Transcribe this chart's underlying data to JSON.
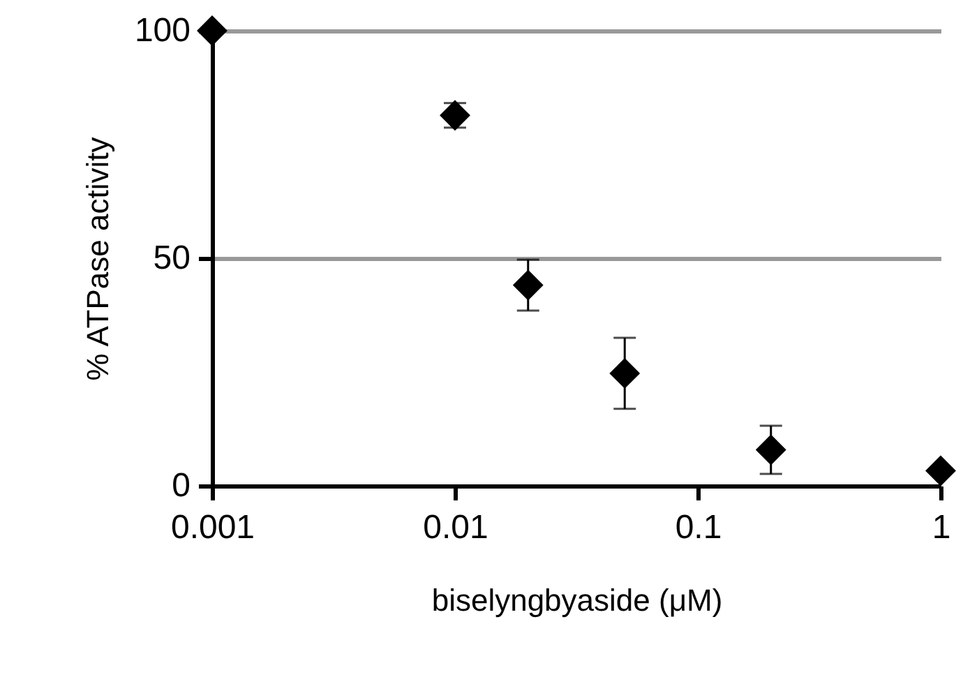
{
  "chart_data": {
    "type": "scatter",
    "xlabel": "biselyngbyaside (μM)",
    "ylabel": "% ATPase activity",
    "x": [
      0.001,
      0.01,
      0.02,
      0.05,
      0.2,
      1
    ],
    "series": [
      {
        "color": "#000000",
        "values": [
          100,
          81.4,
          44.1,
          24.7,
          7.9,
          3.3
        ],
        "errors": [
          null,
          2.7,
          5.6,
          7.8,
          5.3,
          null
        ]
      }
    ],
    "log": "x",
    "xlim": [
      0.001,
      1
    ],
    "xticks": [
      0.001,
      0.01,
      0.1,
      1
    ],
    "ylim": [
      0,
      100
    ],
    "yticks": [
      0,
      50,
      100
    ],
    "grid": "y",
    "marker": "diamond"
  }
}
